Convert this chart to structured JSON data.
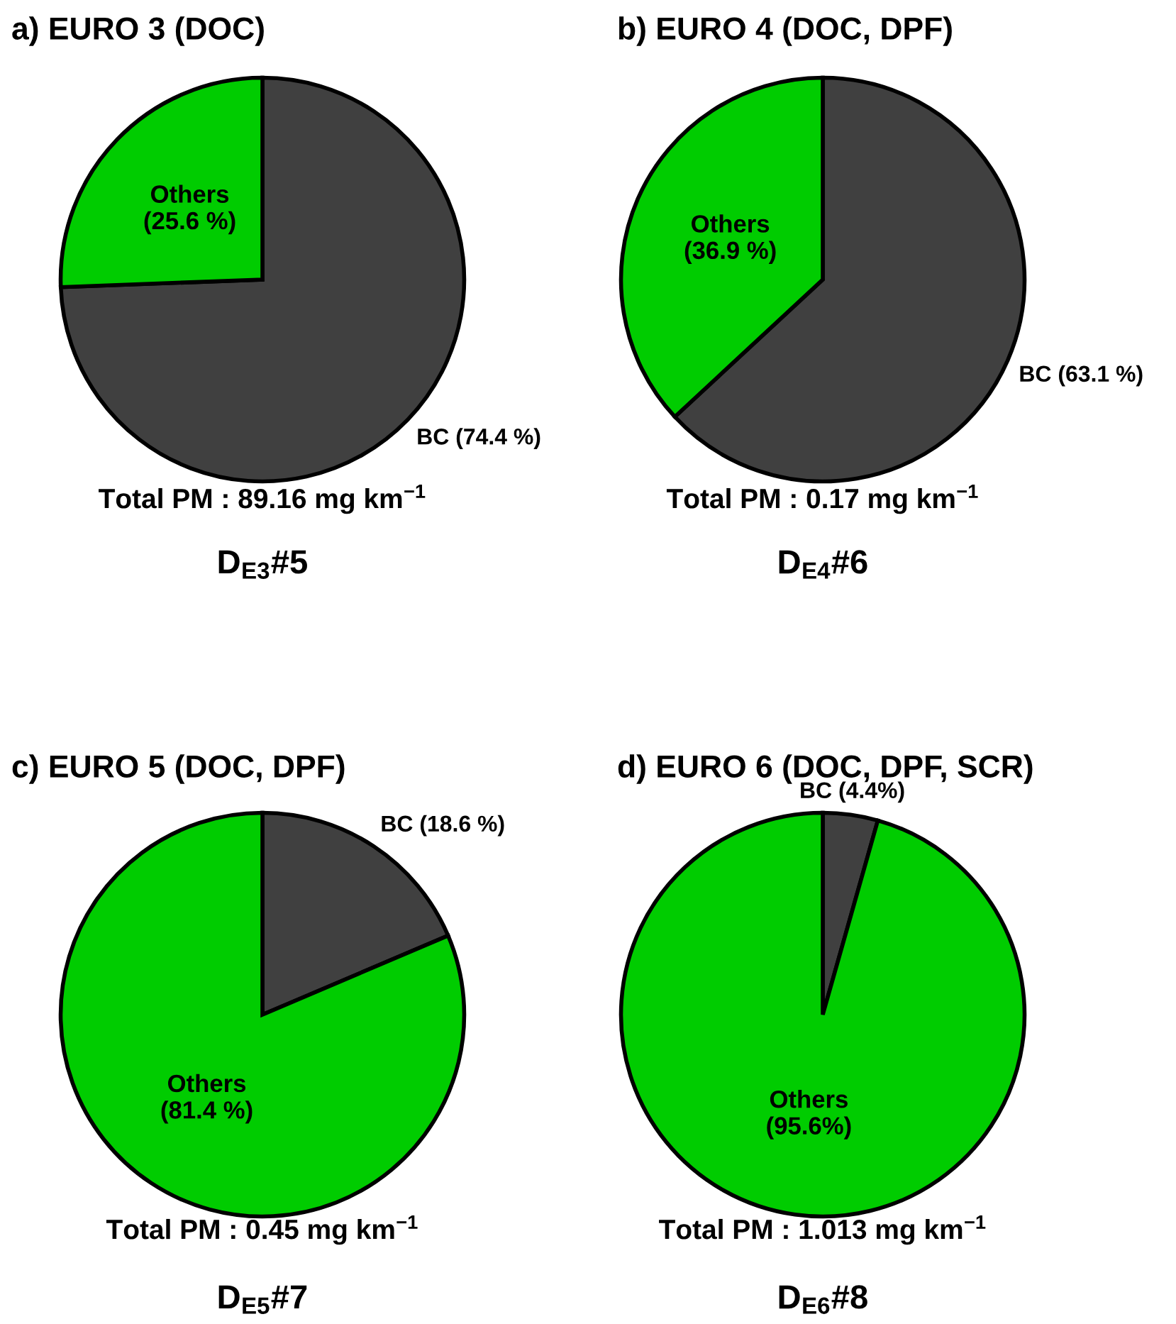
{
  "chart_data": [
    {
      "type": "pie",
      "title": "a) EURO 3 (DOC)",
      "categories": [
        "BC",
        "Others"
      ],
      "values": [
        74.4,
        25.6
      ],
      "colors": [
        "#404040",
        "#00cc00"
      ],
      "value_labels": [
        "(74.4 %)",
        "(25.6 %)"
      ],
      "annotations": [
        "Total PM : 89.16 mg km$^{−1}$",
        "D$_{E3}$#5"
      ]
    },
    {
      "type": "pie",
      "title": "b) EURO 4 (DOC, DPF)",
      "categories": [
        "BC",
        "Others"
      ],
      "values": [
        63.1,
        36.9
      ],
      "colors": [
        "#404040",
        "#00cc00"
      ],
      "value_labels": [
        "(63.1 %)",
        "(36.9 %)"
      ],
      "annotations": [
        "Total PM : 0.17 mg km$^{−1}$",
        "D$_{E4}$#6"
      ]
    },
    {
      "type": "pie",
      "title": "c) EURO 5 (DOC, DPF)",
      "categories": [
        "BC",
        "Others"
      ],
      "values": [
        18.6,
        81.4
      ],
      "colors": [
        "#404040",
        "#00cc00"
      ],
      "value_labels": [
        "(18.6 %)",
        "(81.4 %)"
      ],
      "annotations": [
        "Total PM : 0.45 mg km$^{−1}$",
        "D$_{E5}$#7"
      ]
    },
    {
      "type": "pie",
      "title": "d) EURO 6 (DOC, DPF, SCR)",
      "categories": [
        "BC",
        "Others"
      ],
      "values": [
        4.4,
        95.6
      ],
      "colors": [
        "#404040",
        "#00cc00"
      ],
      "value_labels": [
        "(4.4%)",
        "(95.6%)"
      ],
      "annotations": [
        "Total PM : 1.013 mg km$^{−1}$",
        "D$_{E6}$#8"
      ]
    }
  ]
}
